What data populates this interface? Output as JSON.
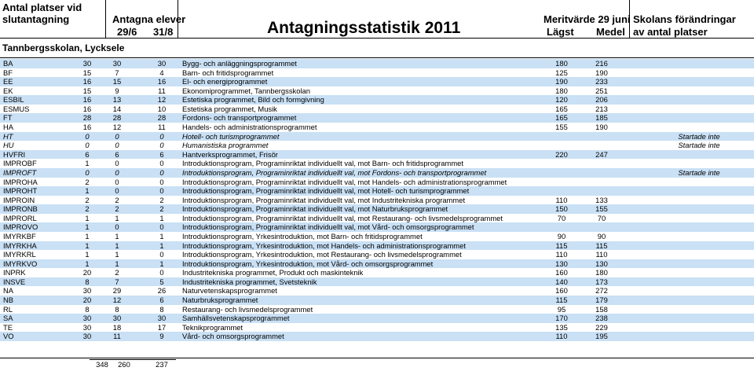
{
  "header": {
    "col1_line1": "Antal platser vid",
    "col1_line2": "slutantagning",
    "col2_line1": "Antagna elever",
    "col2_sub1": "29/6",
    "col2_sub2": "31/8",
    "title": "Antagningsstatistik 2011",
    "col3_line1": "Meritvärde 29 juni",
    "col3_sub1": "Lägst",
    "col3_sub2": "Medel",
    "col4_line1": "Skolans förändringar",
    "col4_line2": "av antal platser"
  },
  "school": "Tannbergsskolan, Lycksele",
  "rows": [
    {
      "code": "BA",
      "n1": "30",
      "n2": "30",
      "n3": "30",
      "program": "Bygg- och anläggningsprogrammet",
      "low": "180",
      "mid": "216",
      "change": "",
      "alt": true,
      "italic": false
    },
    {
      "code": "BF",
      "n1": "15",
      "n2": "7",
      "n3": "4",
      "program": "Barn- och fritidsprogrammet",
      "low": "125",
      "mid": "190",
      "change": "",
      "alt": false,
      "italic": false
    },
    {
      "code": "EE",
      "n1": "16",
      "n2": "15",
      "n3": "16",
      "program": "El- och energiprogrammet",
      "low": "190",
      "mid": "233",
      "change": "",
      "alt": true,
      "italic": false
    },
    {
      "code": "EK",
      "n1": "15",
      "n2": "9",
      "n3": "11",
      "program": "Ekonomiprogrammet, Tannbergsskolan",
      "low": "180",
      "mid": "251",
      "change": "",
      "alt": false,
      "italic": false
    },
    {
      "code": "ESBIL",
      "n1": "16",
      "n2": "13",
      "n3": "12",
      "program": "Estetiska programmet, Bild och formgivning",
      "low": "120",
      "mid": "206",
      "change": "",
      "alt": true,
      "italic": false
    },
    {
      "code": "ESMUS",
      "n1": "16",
      "n2": "14",
      "n3": "10",
      "program": "Estetiska programmet, Musik",
      "low": "165",
      "mid": "213",
      "change": "",
      "alt": false,
      "italic": false
    },
    {
      "code": "FT",
      "n1": "28",
      "n2": "28",
      "n3": "28",
      "program": "Fordons- och transportprogrammet",
      "low": "165",
      "mid": "185",
      "change": "",
      "alt": true,
      "italic": false
    },
    {
      "code": "HA",
      "n1": "16",
      "n2": "12",
      "n3": "11",
      "program": "Handels- och administrationsprogrammet",
      "low": "155",
      "mid": "190",
      "change": "",
      "alt": false,
      "italic": false
    },
    {
      "code": "HT",
      "n1": "0",
      "n2": "0",
      "n3": "0",
      "program": "Hotell- och turismprogrammet",
      "low": "",
      "mid": "",
      "change": "Startade inte",
      "alt": true,
      "italic": true
    },
    {
      "code": "HU",
      "n1": "0",
      "n2": "0",
      "n3": "0",
      "program": "Humanistiska programmet",
      "low": "",
      "mid": "",
      "change": "Startade inte",
      "alt": false,
      "italic": true
    },
    {
      "code": "HVFRI",
      "n1": "6",
      "n2": "6",
      "n3": "6",
      "program": "Hantverksprogrammet, Frisör",
      "low": "220",
      "mid": "247",
      "change": "",
      "alt": true,
      "italic": false
    },
    {
      "code": "IMPROBF",
      "n1": "1",
      "n2": "0",
      "n3": "0",
      "program": "Introduktionsprogram, Programinriktat individuellt val, mot Barn- och fritidsprogrammet",
      "low": "",
      "mid": "",
      "change": "",
      "alt": false,
      "italic": false
    },
    {
      "code": "IMPROFT",
      "n1": "0",
      "n2": "0",
      "n3": "0",
      "program": "Introduktionsprogram, Programinriktat individuellt val, mot Fordons- och transportprogrammet",
      "low": "",
      "mid": "",
      "change": "Startade inte",
      "alt": true,
      "italic": true
    },
    {
      "code": "IMPROHA",
      "n1": "2",
      "n2": "0",
      "n3": "0",
      "program": "Introduktionsprogram, Programinriktat individuellt val, mot Handels- och administrationsprogrammet",
      "low": "",
      "mid": "",
      "change": "",
      "alt": false,
      "italic": false
    },
    {
      "code": "IMPROHT",
      "n1": "1",
      "n2": "0",
      "n3": "0",
      "program": "Introduktionsprogram, Programinriktat individuellt val, mot Hotell- och turismprogrammet",
      "low": "",
      "mid": "",
      "change": "",
      "alt": true,
      "italic": false
    },
    {
      "code": "IMPROIN",
      "n1": "2",
      "n2": "2",
      "n3": "2",
      "program": "Introduktionsprogram, Programinriktat individuellt val, mot Industritekniska programmet",
      "low": "110",
      "mid": "133",
      "change": "",
      "alt": false,
      "italic": false
    },
    {
      "code": "IMPRONB",
      "n1": "2",
      "n2": "2",
      "n3": "2",
      "program": "Introduktionsprogram, Programinriktat individuellt val, mot Naturbruksprogrammet",
      "low": "150",
      "mid": "155",
      "change": "",
      "alt": true,
      "italic": false
    },
    {
      "code": "IMPRORL",
      "n1": "1",
      "n2": "1",
      "n3": "1",
      "program": "Introduktionsprogram, Programinriktat individuellt val, mot Restaurang- och livsmedelsprogrammet",
      "low": "70",
      "mid": "70",
      "change": "",
      "alt": false,
      "italic": false
    },
    {
      "code": "IMPROVO",
      "n1": "1",
      "n2": "0",
      "n3": "0",
      "program": "Introduktionsprogram, Programinriktat individuellt val, mot Vård- och omsorgsprogrammet",
      "low": "",
      "mid": "",
      "change": "",
      "alt": true,
      "italic": false
    },
    {
      "code": "IMYRKBF",
      "n1": "1",
      "n2": "1",
      "n3": "1",
      "program": "Introduktionsprogram, Yrkesintroduktion, mot Barn- och fritidsprogrammet",
      "low": "90",
      "mid": "90",
      "change": "",
      "alt": false,
      "italic": false
    },
    {
      "code": "IMYRKHA",
      "n1": "1",
      "n2": "1",
      "n3": "1",
      "program": "Introduktionsprogram, Yrkesintroduktion, mot Handels- och administrationsprogrammet",
      "low": "115",
      "mid": "115",
      "change": "",
      "alt": true,
      "italic": false
    },
    {
      "code": "IMYRKRL",
      "n1": "1",
      "n2": "1",
      "n3": "0",
      "program": "Introduktionsprogram, Yrkesintroduktion, mot Restaurang- och livsmedelsprogrammet",
      "low": "110",
      "mid": "110",
      "change": "",
      "alt": false,
      "italic": false
    },
    {
      "code": "IMYRKVO",
      "n1": "1",
      "n2": "1",
      "n3": "1",
      "program": "Introduktionsprogram, Yrkesintroduktion, mot Vård- och omsorgsprogrammet",
      "low": "130",
      "mid": "130",
      "change": "",
      "alt": true,
      "italic": false
    },
    {
      "code": "INPRK",
      "n1": "20",
      "n2": "2",
      "n3": "0",
      "program": "Industritekniska programmet, Produkt och maskinteknik",
      "low": "160",
      "mid": "180",
      "change": "",
      "alt": false,
      "italic": false
    },
    {
      "code": "INSVE",
      "n1": "8",
      "n2": "7",
      "n3": "5",
      "program": "Industritekniska programmet, Svetsteknik",
      "low": "140",
      "mid": "173",
      "change": "",
      "alt": true,
      "italic": false
    },
    {
      "code": "NA",
      "n1": "30",
      "n2": "29",
      "n3": "26",
      "program": "Naturvetenskapsprogrammet",
      "low": "160",
      "mid": "272",
      "change": "",
      "alt": false,
      "italic": false
    },
    {
      "code": "NB",
      "n1": "20",
      "n2": "12",
      "n3": "6",
      "program": "Naturbruksprogrammet",
      "low": "115",
      "mid": "179",
      "change": "",
      "alt": true,
      "italic": false
    },
    {
      "code": "RL",
      "n1": "8",
      "n2": "8",
      "n3": "8",
      "program": "Restaurang- och livsmedelsprogrammet",
      "low": "95",
      "mid": "158",
      "change": "",
      "alt": false,
      "italic": false
    },
    {
      "code": "SA",
      "n1": "30",
      "n2": "30",
      "n3": "30",
      "program": "Samhällsvetenskapsprogrammet",
      "low": "170",
      "mid": "238",
      "change": "",
      "alt": true,
      "italic": false
    },
    {
      "code": "TE",
      "n1": "30",
      "n2": "18",
      "n3": "17",
      "program": "Teknikprogrammet",
      "low": "135",
      "mid": "229",
      "change": "",
      "alt": false,
      "italic": false
    },
    {
      "code": "VO",
      "n1": "30",
      "n2": "11",
      "n3": "9",
      "program": "Vård- och omsorgsprogrammet",
      "low": "110",
      "mid": "195",
      "change": "",
      "alt": true,
      "italic": false
    }
  ],
  "totals": {
    "n1": "348",
    "n2": "260",
    "n3": "237"
  }
}
